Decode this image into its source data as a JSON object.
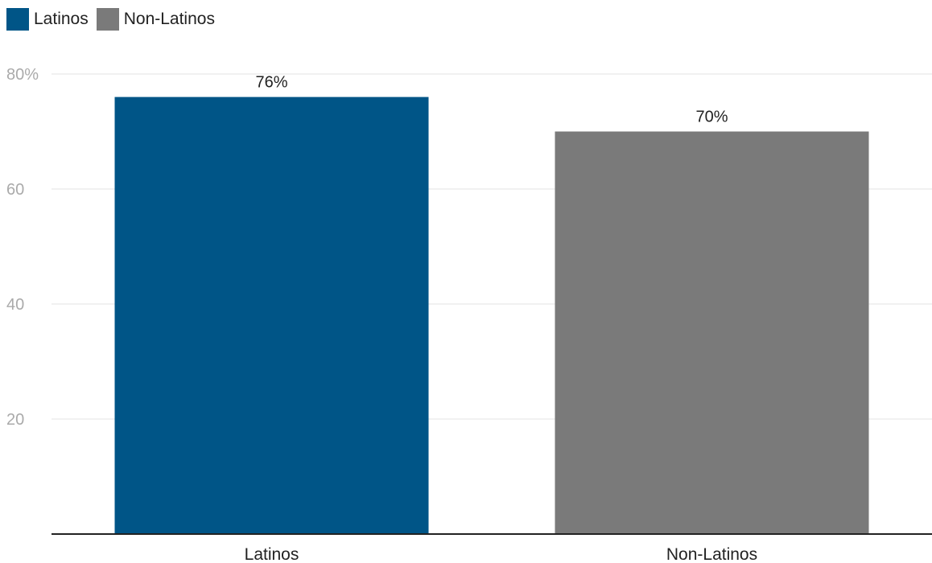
{
  "chart_data": {
    "type": "bar",
    "categories": [
      "Latinos",
      "Non-Latinos"
    ],
    "values": [
      76,
      70
    ],
    "data_labels": [
      "76%",
      "70%"
    ],
    "colors": [
      "#005587",
      "#7a7a7a"
    ],
    "legend": {
      "placement": "top-left",
      "entries": [
        {
          "label": "Latinos",
          "color": "#005587"
        },
        {
          "label": "Non-Latinos",
          "color": "#7a7a7a"
        }
      ]
    },
    "yticks": [
      {
        "value": 20,
        "label": "20"
      },
      {
        "value": 40,
        "label": "40"
      },
      {
        "value": 60,
        "label": "60"
      },
      {
        "value": 80,
        "label": "80%"
      }
    ],
    "ylim": [
      0,
      80
    ],
    "grid": true,
    "title": "",
    "xlabel": "",
    "ylabel": ""
  }
}
